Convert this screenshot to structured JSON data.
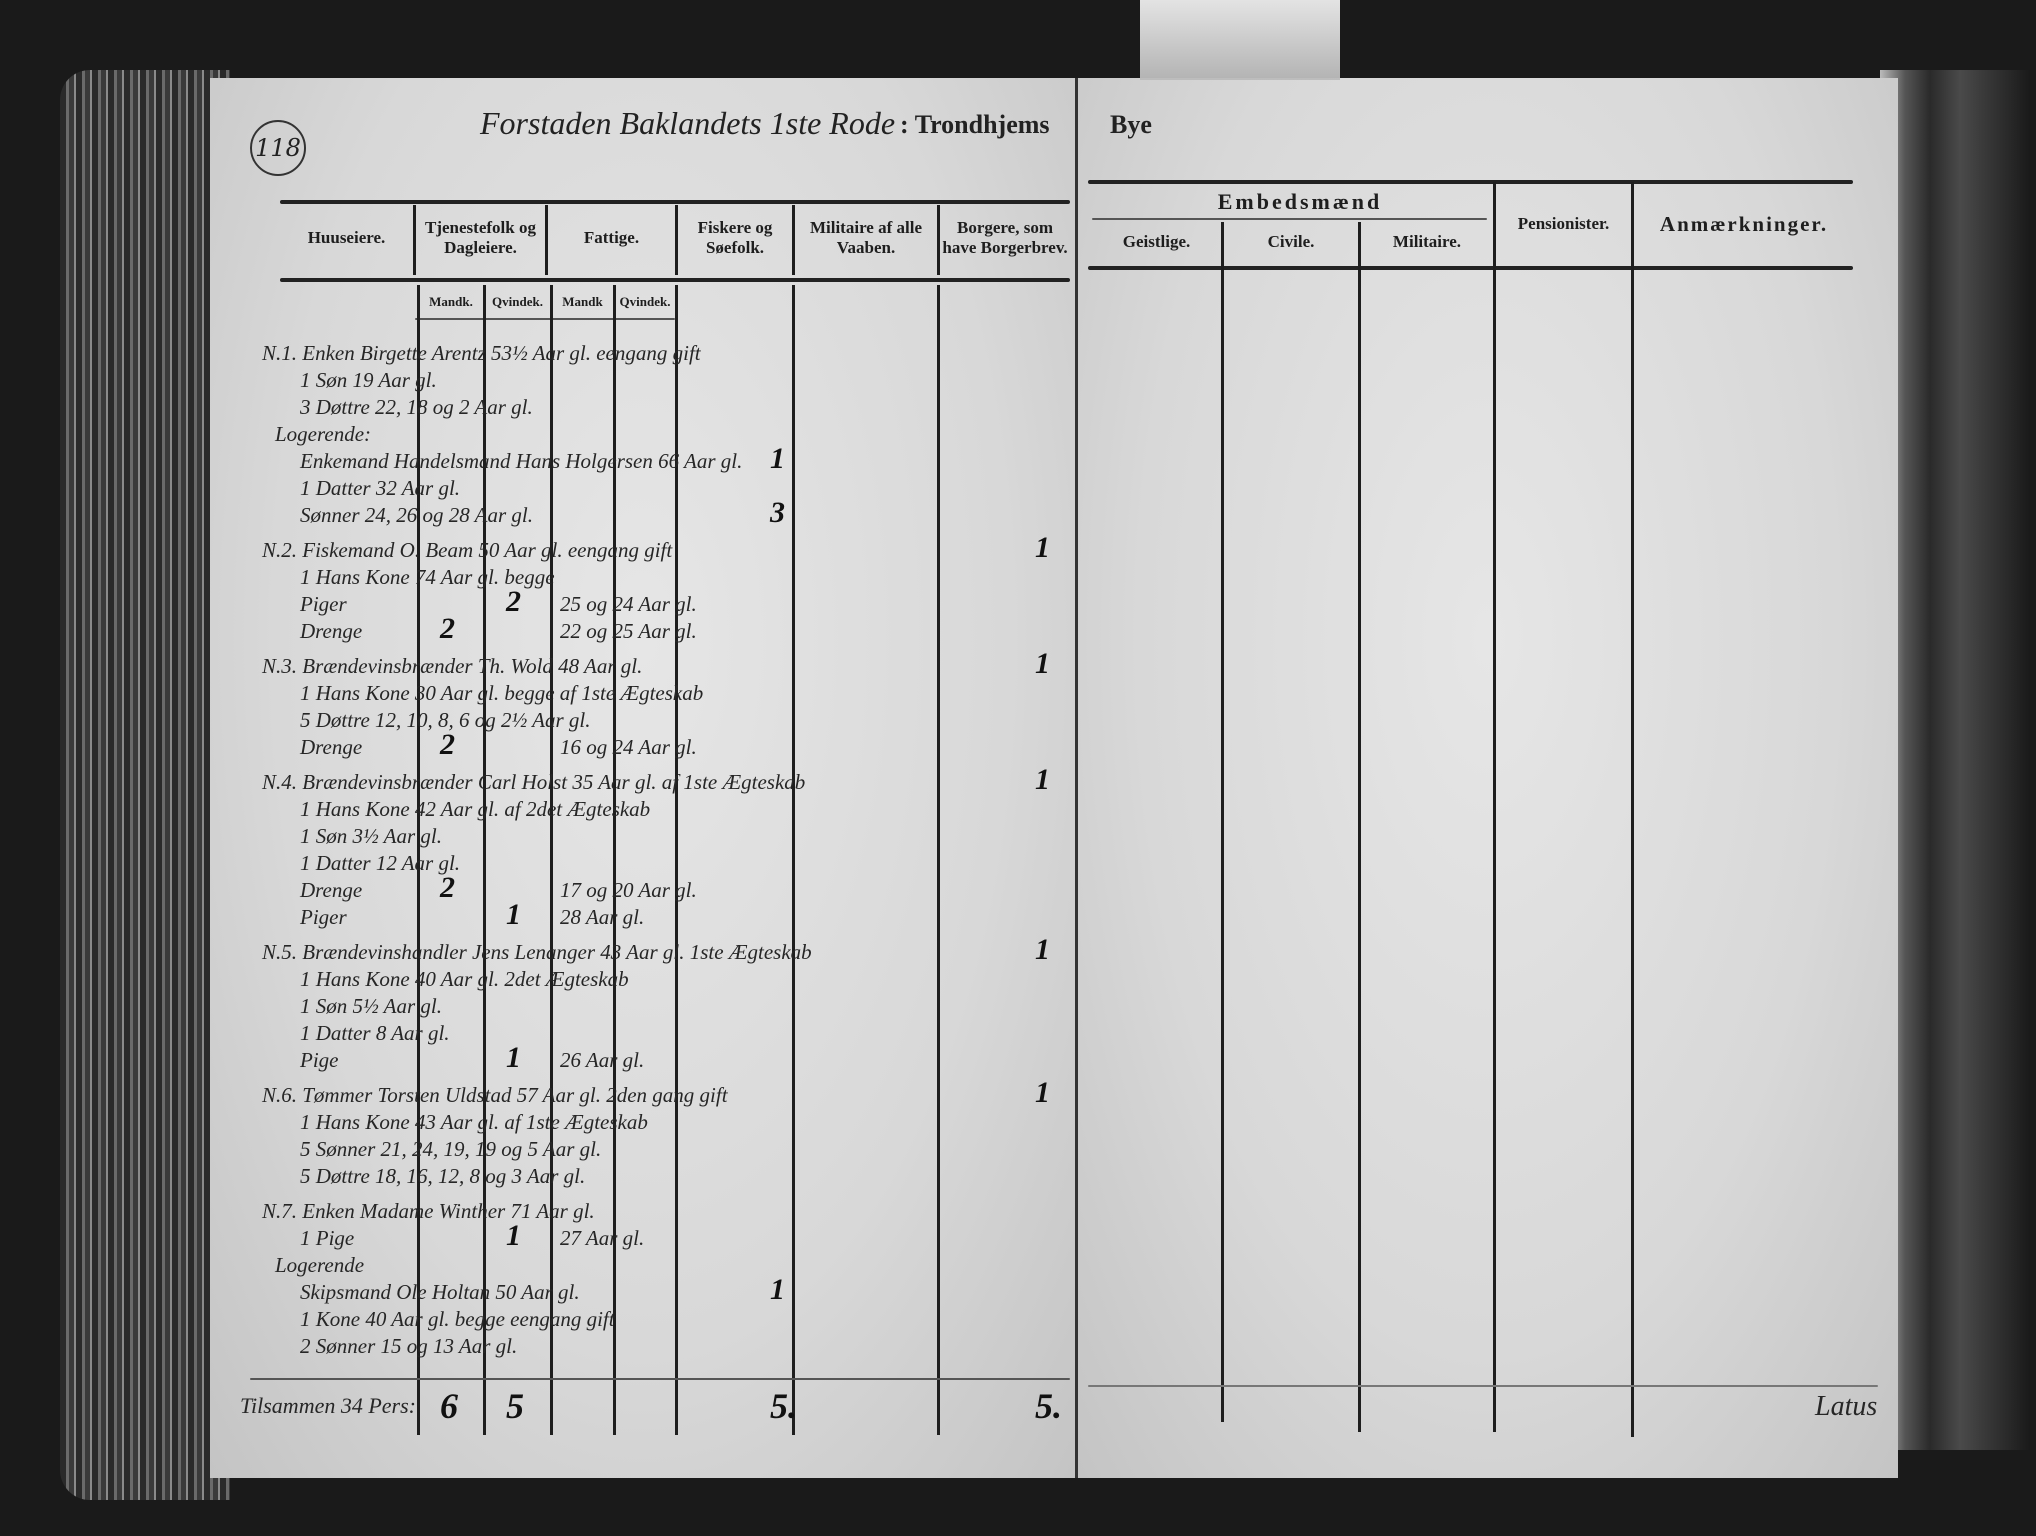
{
  "folio_number": "118",
  "title": {
    "handwritten": "Forstaden Baklandets 1ste Rode",
    "printed": ": Trondhjems",
    "printed_continued": "Bye"
  },
  "left_headers": {
    "huuseiere": "Huuseiere.",
    "tjenestefolk": "Tjenestefolk og Dagleiere.",
    "fattige": "Fattige.",
    "fiskere": "Fiskere og Søefolk.",
    "militaire": "Militaire af alle Vaaben.",
    "borgere": "Borgere, som have Borgerbrev.",
    "mandk_1": "Mandk.",
    "qvindek_1": "Qvindek.",
    "mandk_2": "Mandk",
    "qvindek_2": "Qvindek."
  },
  "right_headers": {
    "embedsmaend": "Embedsmænd",
    "geistlige": "Geistlige.",
    "civile": "Civile.",
    "militaire": "Militaire.",
    "pensionister": "Pensionister.",
    "anmaerkninger": "Anmærkninger."
  },
  "entries": [
    {
      "text": "N.1. Enken Birgette Arentz 53½ Aar gl. eengang gift",
      "marks": []
    },
    {
      "text": "1 Søn 19 Aar gl.",
      "marks": []
    },
    {
      "text": "3 Døttre 22, 18 og 2 Aar gl.",
      "marks": []
    },
    {
      "text": "Logerende:",
      "marks": []
    },
    {
      "text": "Enkemand Handelsmand Hans Holgersen 66 Aar gl.",
      "marks": [
        {
          "col": "fiskere",
          "v": "1"
        }
      ]
    },
    {
      "text": "1 Datter 32 Aar gl.",
      "marks": []
    },
    {
      "text": "Sønner 24, 26 og 28 Aar gl.",
      "marks": [
        {
          "col": "fiskere",
          "v": "3"
        }
      ]
    },
    {
      "text": "N.2. Fiskemand O. Beam 50 Aar gl. eengang gift",
      "marks": [
        {
          "col": "borgere",
          "v": "1"
        }
      ]
    },
    {
      "text": "1 Hans Kone 74 Aar gl. begge",
      "marks": []
    },
    {
      "text": "Piger",
      "marks": [
        {
          "col": "qvindek_1",
          "v": "2"
        }
      ],
      "tail": "25 og 24 Aar gl."
    },
    {
      "text": "Drenge",
      "marks": [
        {
          "col": "mandk_1",
          "v": "2"
        }
      ],
      "tail": "22 og 25 Aar gl."
    },
    {
      "text": "N.3. Brændevinsbrænder Th. Wold 48 Aar gl.",
      "marks": [
        {
          "col": "borgere",
          "v": "1"
        }
      ]
    },
    {
      "text": "1 Hans Kone 30 Aar gl. begge af 1ste Ægteskab",
      "marks": []
    },
    {
      "text": "5 Døttre 12, 10, 8, 6 og 2½ Aar gl.",
      "marks": []
    },
    {
      "text": "Drenge",
      "marks": [
        {
          "col": "mandk_1",
          "v": "2"
        }
      ],
      "tail": "16 og 24 Aar gl."
    },
    {
      "text": "N.4. Brændevinsbrænder Carl Holst 35 Aar gl. af 1ste Ægteskab",
      "marks": [
        {
          "col": "borgere",
          "v": "1"
        }
      ]
    },
    {
      "text": "1 Hans Kone 42 Aar gl. af 2det Ægteskab",
      "marks": []
    },
    {
      "text": "1 Søn 3½ Aar gl.",
      "marks": []
    },
    {
      "text": "1 Datter 12 Aar gl.",
      "marks": []
    },
    {
      "text": "Drenge",
      "marks": [
        {
          "col": "mandk_1",
          "v": "2"
        }
      ],
      "tail": "17 og 20 Aar gl."
    },
    {
      "text": "Piger",
      "marks": [
        {
          "col": "qvindek_1",
          "v": "1"
        }
      ],
      "tail": "28 Aar gl."
    },
    {
      "text": "N.5. Brændevinshandler Jens Lenanger 43 Aar gl. 1ste Ægteskab",
      "marks": [
        {
          "col": "borgere",
          "v": "1"
        }
      ]
    },
    {
      "text": "1 Hans Kone 40 Aar gl. 2det Ægteskab",
      "marks": []
    },
    {
      "text": "1 Søn 5½ Aar gl.",
      "marks": []
    },
    {
      "text": "1 Datter 8 Aar gl.",
      "marks": []
    },
    {
      "text": "Pige",
      "marks": [
        {
          "col": "qvindek_1",
          "v": "1"
        }
      ],
      "tail": "26 Aar gl."
    },
    {
      "text": "N.6. Tømmer Torsten Uldstad 57 Aar gl. 2den gang gift",
      "marks": [
        {
          "col": "borgere",
          "v": "1"
        }
      ]
    },
    {
      "text": "1 Hans Kone 43 Aar gl. af 1ste Ægteskab",
      "marks": []
    },
    {
      "text": "5 Sønner 21, 24, 19, 19 og 5 Aar gl.",
      "marks": []
    },
    {
      "text": "5 Døttre 18, 16, 12, 8 og 3 Aar gl.",
      "marks": []
    },
    {
      "text": "N.7. Enken Madame Winther 71 Aar gl.",
      "marks": []
    },
    {
      "text": "1 Pige",
      "marks": [
        {
          "col": "qvindek_1",
          "v": "1"
        }
      ],
      "tail": "27 Aar gl."
    },
    {
      "text": "Logerende",
      "marks": []
    },
    {
      "text": "Skipsmand Ole Holtan 50 Aar gl.",
      "marks": [
        {
          "col": "fiskere",
          "v": "1"
        }
      ]
    },
    {
      "text": "1 Kone  40 Aar gl. begge eengang gift",
      "marks": []
    },
    {
      "text": "2 Sønner 15 og 13 Aar gl.",
      "marks": []
    }
  ],
  "total": {
    "label": "Tilsammen 34 Pers:",
    "marks": [
      {
        "col": "mandk_1",
        "v": "6"
      },
      {
        "col": "qvindek_1",
        "v": "5"
      },
      {
        "col": "fiskere",
        "v": "5."
      },
      {
        "col": "borgere",
        "v": "5."
      }
    ]
  },
  "latus": "Latus"
}
